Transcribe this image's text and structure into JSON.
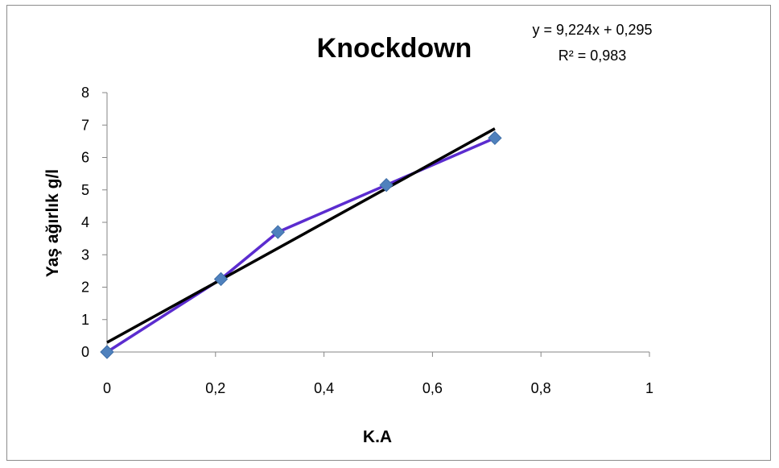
{
  "chart_data": {
    "type": "scatter",
    "title": "Knockdown",
    "xlabel": "K.A",
    "ylabel": "Yaş ağırlık g/l",
    "xlim": [
      0,
      1
    ],
    "ylim": [
      0,
      8
    ],
    "x_ticks": [
      "0",
      "0,2",
      "0,4",
      "0,6",
      "0,8",
      "1"
    ],
    "y_ticks": [
      "0",
      "1",
      "2",
      "3",
      "4",
      "5",
      "6",
      "7",
      "8"
    ],
    "grid": false,
    "series": [
      {
        "x": [
          0,
          0.21,
          0.315,
          0.515,
          0.715
        ],
        "y": [
          0,
          2.25,
          3.7,
          5.15,
          6.6
        ],
        "color": "#4f81bd",
        "line_color": "#5b2ccf",
        "marker": "diamond"
      }
    ],
    "trendline": {
      "type": "linear",
      "slope": 9.224,
      "intercept": 0.295,
      "x_range": [
        0,
        0.715
      ],
      "color": "#000000",
      "equation": "y = 9,224x + 0,295",
      "r_squared": "R² = 0,983"
    }
  }
}
